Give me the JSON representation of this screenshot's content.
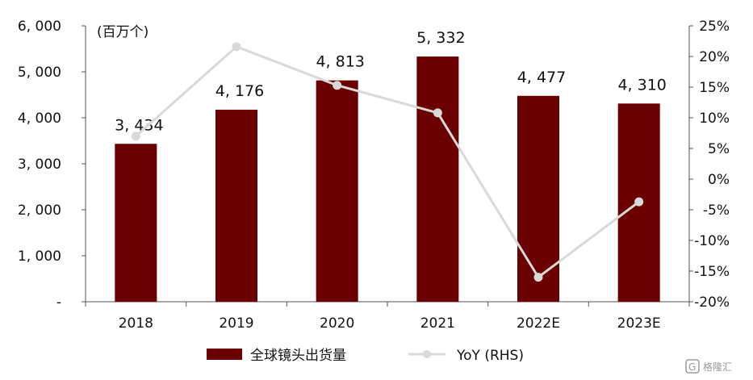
{
  "chart_data": {
    "type": "bar",
    "categories": [
      "2018",
      "2019",
      "2020",
      "2021",
      "2022E",
      "2023E"
    ],
    "series": [
      {
        "name": "全球镜头出货量",
        "type": "bar",
        "axis": "left",
        "values": [
          3434,
          4176,
          4813,
          5332,
          4477,
          4310
        ],
        "labels": [
          "3, 434",
          "4, 176",
          "4, 813",
          "5, 332",
          "4, 477",
          "4, 310"
        ],
        "color": "#6b0000"
      },
      {
        "name": "YoY (RHS)",
        "type": "line",
        "axis": "right",
        "values": [
          7.0,
          21.6,
          15.3,
          10.8,
          -16.0,
          -3.7
        ],
        "color": "#d9d9d9"
      }
    ],
    "left_axis": {
      "unit": "(百万个)",
      "ylim": [
        0,
        6000
      ],
      "ticks": [
        0,
        1000,
        2000,
        3000,
        4000,
        5000,
        6000
      ],
      "tick_labels": [
        "-",
        "1, 000",
        "2, 000",
        "3, 000",
        "4, 000",
        "5, 000",
        "6, 000"
      ]
    },
    "right_axis": {
      "ylim": [
        -20,
        25
      ],
      "ticks": [
        -20,
        -15,
        -10,
        -5,
        0,
        5,
        10,
        15,
        20,
        25
      ],
      "tick_labels": [
        "-20%",
        "-15%",
        "-10%",
        "-5%",
        "0%",
        "5%",
        "10%",
        "15%",
        "20%",
        "25%"
      ]
    },
    "legend": {
      "placement": "bottom",
      "items": [
        {
          "label": "全球镜头出货量",
          "marker": "bar"
        },
        {
          "label": "YoY (RHS)",
          "marker": "line"
        }
      ]
    },
    "grid": false
  },
  "watermark": {
    "text": "格隆汇",
    "logo": "G"
  }
}
